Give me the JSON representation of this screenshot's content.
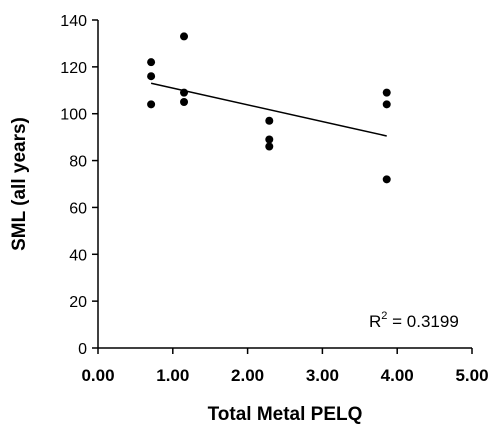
{
  "chart_data": {
    "type": "scatter",
    "title": "",
    "xlabel": "Total Metal PELQ",
    "ylabel": "SML (all years)",
    "xlim": [
      0,
      5
    ],
    "ylim": [
      0,
      140
    ],
    "x_ticks": [
      0,
      1,
      2,
      3,
      4,
      5
    ],
    "x_tick_labels": [
      "0.00",
      "1.00",
      "2.00",
      "3.00",
      "4.00",
      "5.00"
    ],
    "y_ticks": [
      0,
      20,
      40,
      60,
      80,
      100,
      120,
      140
    ],
    "y_tick_labels": [
      "0",
      "20",
      "40",
      "60",
      "80",
      "100",
      "120",
      "140"
    ],
    "grid": false,
    "points": [
      {
        "x": 0.71,
        "y": 122
      },
      {
        "x": 0.71,
        "y": 116
      },
      {
        "x": 0.71,
        "y": 104
      },
      {
        "x": 1.15,
        "y": 133
      },
      {
        "x": 1.15,
        "y": 109
      },
      {
        "x": 1.15,
        "y": 105
      },
      {
        "x": 2.29,
        "y": 97
      },
      {
        "x": 2.29,
        "y": 89
      },
      {
        "x": 2.29,
        "y": 86
      },
      {
        "x": 3.86,
        "y": 109
      },
      {
        "x": 3.86,
        "y": 104
      },
      {
        "x": 3.86,
        "y": 72
      }
    ],
    "trendline": {
      "x": [
        0.71,
        3.86
      ],
      "y": [
        113,
        90.5
      ]
    },
    "annotation": {
      "base": "R",
      "superscript": "2",
      "text": " = 0.3199"
    },
    "colors": {
      "points": "#000000",
      "line": "#000000",
      "axis": "#000000"
    }
  }
}
